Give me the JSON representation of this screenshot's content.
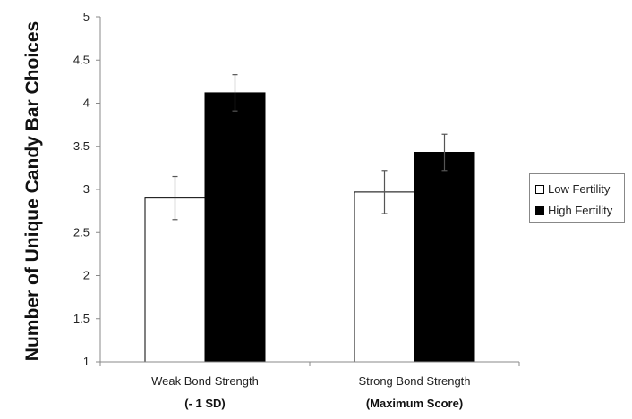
{
  "chart_data": {
    "type": "bar",
    "title": "",
    "xlabel": "",
    "ylabel": "Number of Unique Candy Bar Choices",
    "ylim": [
      1,
      5
    ],
    "yticks": [
      "1",
      "1.5",
      "2",
      "2.5",
      "3",
      "3.5",
      "4",
      "4.5",
      "5"
    ],
    "categories": [
      {
        "label": "Weak Bond Strength",
        "sublabel": "(- 1 SD)"
      },
      {
        "label": "Strong Bond Strength",
        "sublabel": "(Maximum Score)"
      }
    ],
    "series": [
      {
        "name": "Low Fertility",
        "color": "#ffffff",
        "values": [
          2.9,
          2.97
        ],
        "errors": [
          0.25,
          0.25
        ]
      },
      {
        "name": "High Fertility",
        "color": "#000000",
        "values": [
          4.12,
          3.43
        ],
        "errors": [
          0.21,
          0.21
        ]
      }
    ],
    "legend_position": "right",
    "grid": false
  }
}
